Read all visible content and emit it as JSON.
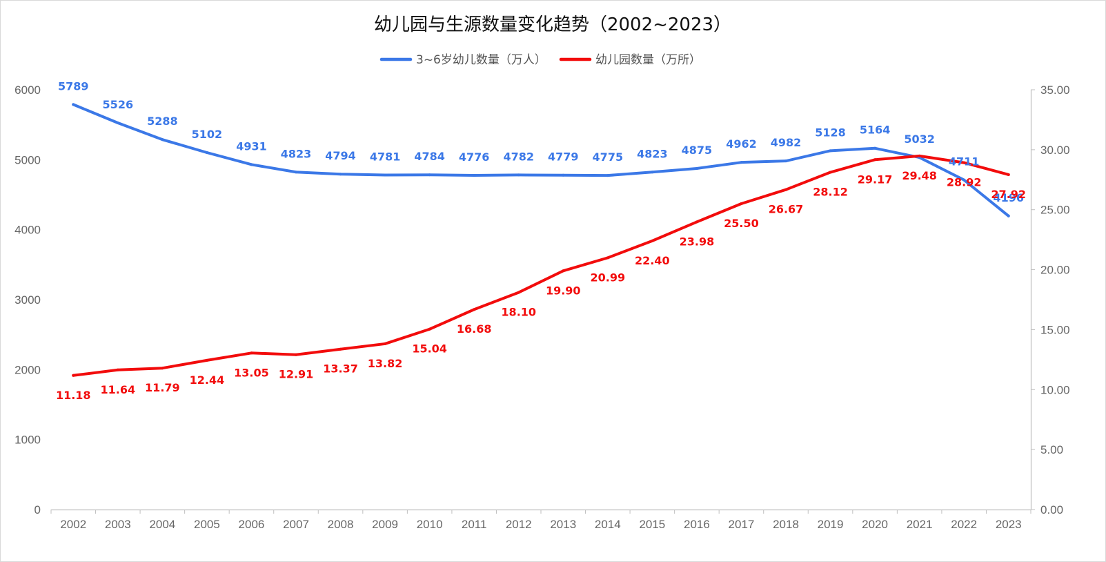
{
  "chart_data": {
    "type": "line",
    "title": "幼儿园与生源数量变化趋势（2002~2023）",
    "categories": [
      "2002",
      "2003",
      "2004",
      "2005",
      "2006",
      "2007",
      "2008",
      "2009",
      "2010",
      "2011",
      "2012",
      "2013",
      "2014",
      "2015",
      "2016",
      "2017",
      "2018",
      "2019",
      "2020",
      "2021",
      "2022",
      "2023"
    ],
    "series": [
      {
        "name": "3~6岁幼儿数量（万人）",
        "axis": "left",
        "color": "#3b78e7",
        "values": [
          5789,
          5526,
          5288,
          5102,
          4931,
          4823,
          4794,
          4781,
          4784,
          4776,
          4782,
          4779,
          4775,
          4823,
          4875,
          4962,
          4982,
          5128,
          5164,
          5032,
          4711,
          4196
        ],
        "labels": [
          "5789",
          "5526",
          "5288",
          "5102",
          "4931",
          "4823",
          "4794",
          "4781",
          "4784",
          "4776",
          "4782",
          "4779",
          "4775",
          "4823",
          "4875",
          "4962",
          "4982",
          "5128",
          "5164",
          "5032",
          "4711",
          "4196"
        ]
      },
      {
        "name": "幼儿园数量（万所）",
        "axis": "right",
        "color": "#f20c0c",
        "values": [
          11.18,
          11.64,
          11.79,
          12.44,
          13.05,
          12.91,
          13.37,
          13.82,
          15.04,
          16.68,
          18.1,
          19.9,
          20.99,
          22.4,
          23.98,
          25.5,
          26.67,
          28.12,
          29.17,
          29.48,
          28.92,
          27.92
        ],
        "labels": [
          "11.18",
          "11.64",
          "11.79",
          "12.44",
          "13.05",
          "12.91",
          "13.37",
          "13.82",
          "15.04",
          "16.68",
          "18.10",
          "19.90",
          "20.99",
          "22.40",
          "23.98",
          "25.50",
          "26.67",
          "28.12",
          "29.17",
          "29.48",
          "28.92",
          "27.92"
        ]
      }
    ],
    "y_left": {
      "range": [
        0,
        6000
      ],
      "ticks": [
        "0",
        "1000",
        "2000",
        "3000",
        "4000",
        "5000",
        "6000"
      ]
    },
    "y_right": {
      "range": [
        0,
        35
      ],
      "ticks": [
        "0.00",
        "5.00",
        "10.00",
        "15.00",
        "20.00",
        "25.00",
        "30.00",
        "35.00"
      ]
    },
    "legend_position": "top-center",
    "grid": false,
    "drop_lines": true
  }
}
